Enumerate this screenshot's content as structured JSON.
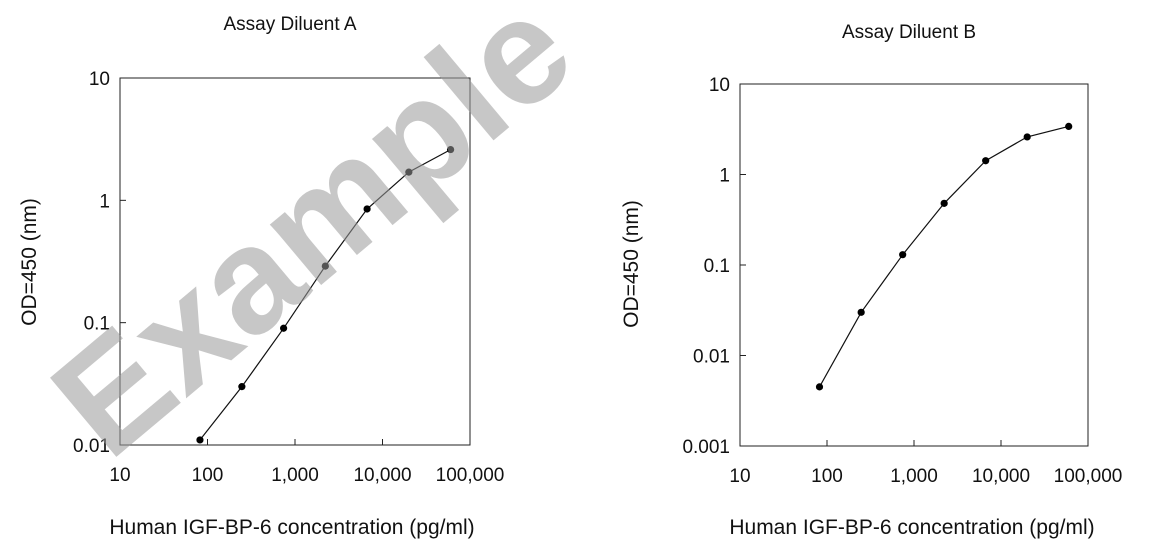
{
  "watermark": "Example",
  "chart_data": [
    {
      "type": "line",
      "title": "Assay Diluent A",
      "xlabel": "Human IGF-BP-6 concentration (pg/ml)",
      "ylabel": "OD=450 (nm)",
      "x_scale": "log",
      "y_scale": "log",
      "xlim": [
        10,
        100000
      ],
      "ylim": [
        0.01,
        10
      ],
      "x_ticks": [
        10,
        100,
        1000,
        10000,
        100000
      ],
      "x_tick_labels": [
        "10",
        "100",
        "1,000",
        "10,000",
        "100,000"
      ],
      "y_ticks": [
        0.01,
        0.1,
        1,
        10
      ],
      "y_tick_labels": [
        "0.01",
        "0.1",
        "1",
        "10"
      ],
      "grid": false,
      "series": [
        {
          "x": [
            82,
            247,
            741,
            2222,
            6667,
            20000,
            60000
          ],
          "y": [
            0.011,
            0.03,
            0.09,
            0.29,
            0.85,
            1.7,
            2.6
          ]
        }
      ]
    },
    {
      "type": "line",
      "title": "Assay Diluent B",
      "xlabel": "Human IGF-BP-6 concentration (pg/ml)",
      "ylabel": "OD=450 (nm)",
      "x_scale": "log",
      "y_scale": "log",
      "xlim": [
        10,
        100000
      ],
      "ylim": [
        0.001,
        10
      ],
      "x_ticks": [
        10,
        100,
        1000,
        10000,
        100000
      ],
      "x_tick_labels": [
        "10",
        "100",
        "1,000",
        "10,000",
        "100,000"
      ],
      "y_ticks": [
        0.001,
        0.01,
        0.1,
        1,
        10
      ],
      "y_tick_labels": [
        "0.001",
        "0.01",
        "0.1",
        "1",
        "10"
      ],
      "grid": false,
      "series": [
        {
          "x": [
            82,
            247,
            741,
            2222,
            6667,
            20000,
            60000
          ],
          "y": [
            0.0045,
            0.03,
            0.13,
            0.48,
            1.42,
            2.6,
            3.4
          ]
        }
      ]
    }
  ]
}
